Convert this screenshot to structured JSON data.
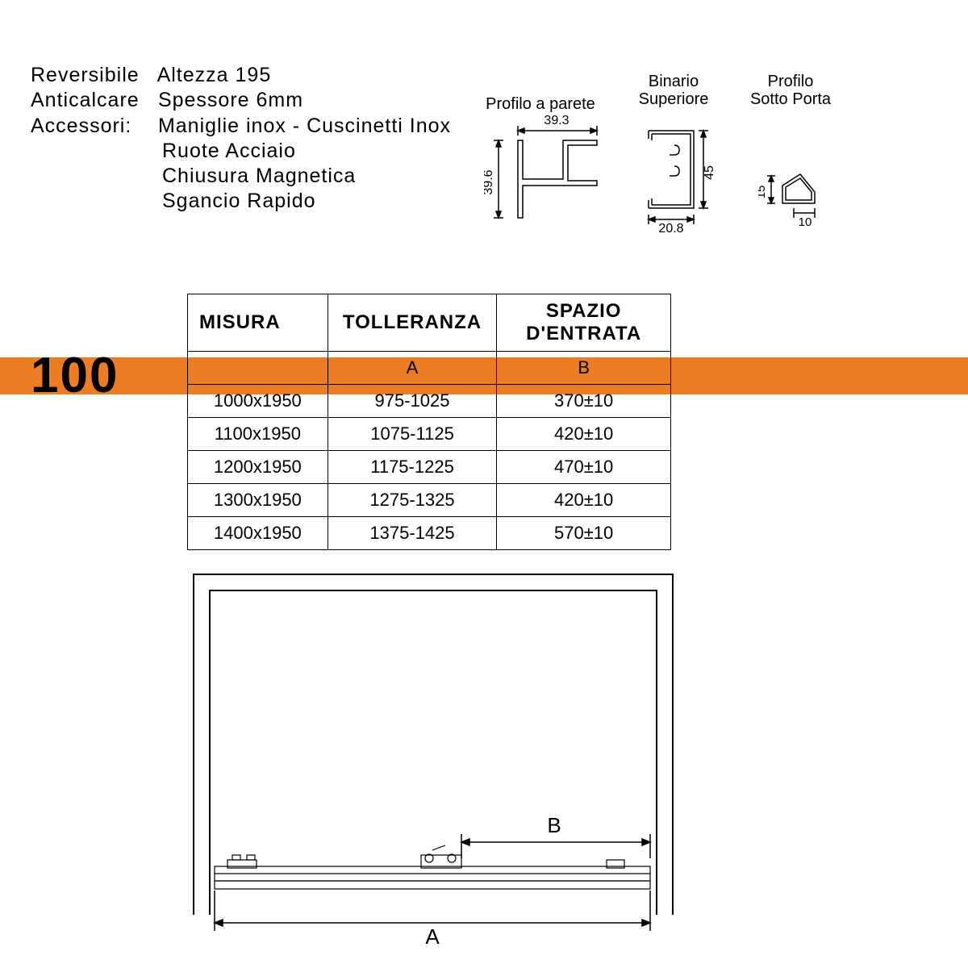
{
  "text_color": "#000000",
  "background_color": "#ffffff",
  "accent_color": "#ed7d24",
  "stroke_color": "#000000",
  "specs": {
    "r1a": "Reversibile",
    "r1b": "Altezza 195",
    "r2a": "Anticalcare",
    "r2b": "Spessore 6mm",
    "r3a": "Accessori:",
    "r3b": "Maniglie inox - Cuscinetti Inox",
    "r4": "Ruote Acciaio",
    "r5": "Chiusura Magnetica",
    "r6": "Sgancio Rapido"
  },
  "profiles": {
    "p1": {
      "label": "Profilo a parete",
      "dim_w": "39.3",
      "dim_h": "39.6"
    },
    "p2": {
      "label_l1": "Binario",
      "label_l2": "Superiore",
      "dim_w": "20.8",
      "dim_h": "45"
    },
    "p3": {
      "label_l1": "Profilo",
      "label_l2": "Sotto Porta",
      "dim_w": "10",
      "dim_h": "15"
    }
  },
  "big_label": "100",
  "table": {
    "headers": [
      "MISURA",
      "TOLLERANZA",
      "SPAZIO D'ENTRATA"
    ],
    "subheaders": [
      "",
      "A",
      "B"
    ],
    "rows": [
      {
        "misura": "1000x1950",
        "toll": "975-1025",
        "entr": "370±10",
        "highlight": true
      },
      {
        "misura": "1100x1950",
        "toll": "1075-1125",
        "entr": "420±10",
        "highlight": false
      },
      {
        "misura": "1200x1950",
        "toll": "1175-1225",
        "entr": "470±10",
        "highlight": false
      },
      {
        "misura": "1300x1950",
        "toll": "1275-1325",
        "entr": "420±10",
        "highlight": false
      },
      {
        "misura": "1400x1950",
        "toll": "1375-1425",
        "entr": "570±10",
        "highlight": false
      }
    ],
    "col_widths": [
      0.29,
      0.35,
      0.36
    ]
  },
  "diagram": {
    "label_A": "A",
    "label_B": "B"
  }
}
